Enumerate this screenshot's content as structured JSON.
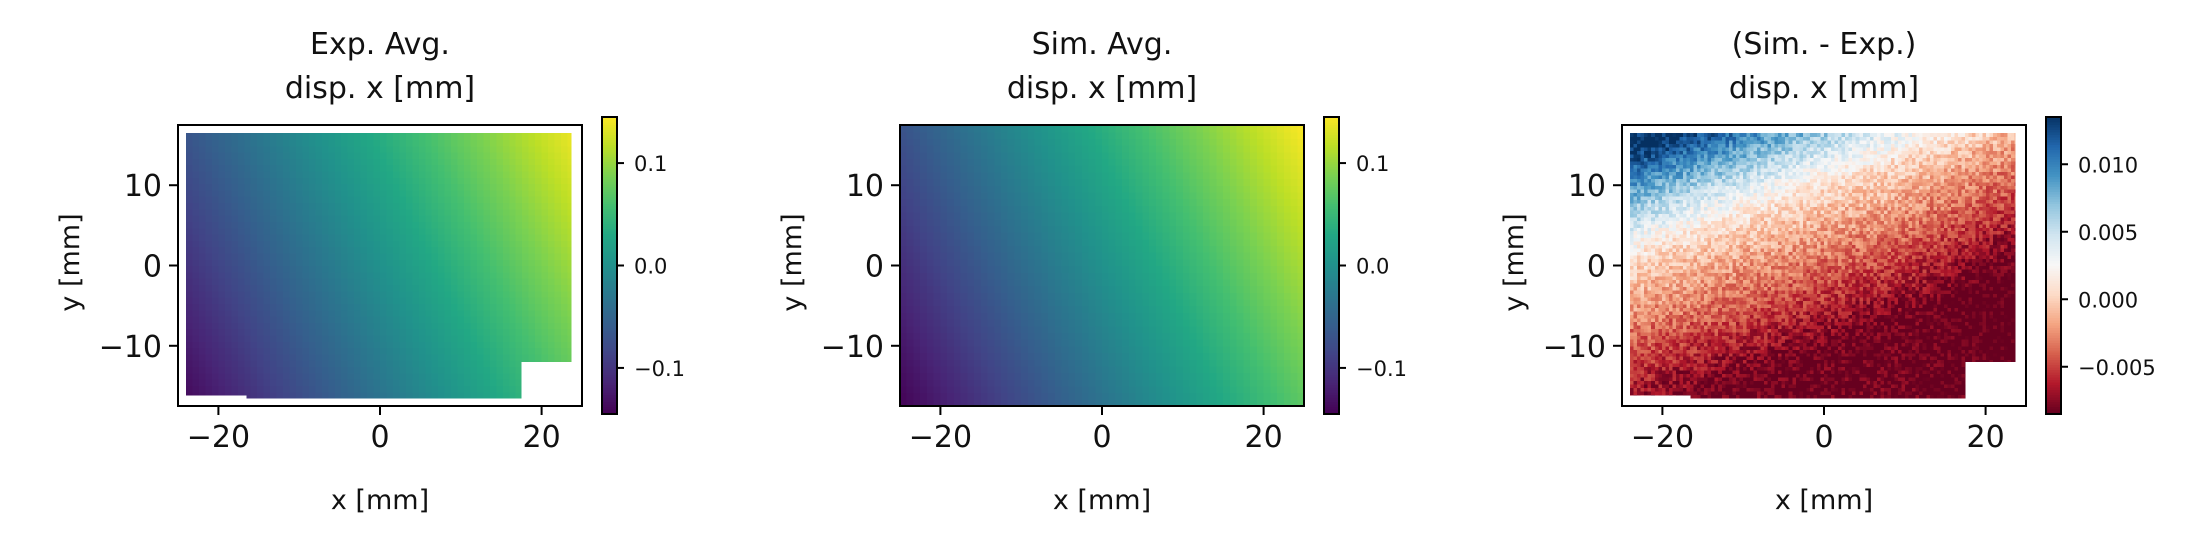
{
  "chart_data": [
    {
      "type": "heatmap",
      "title_lines": [
        "Exp. Avg.",
        "disp. x [mm]"
      ],
      "xlabel": "x [mm]",
      "ylabel": "y [mm]",
      "xlim": [
        -25,
        25
      ],
      "ylim": [
        -17.5,
        17.5
      ],
      "xticks": [
        -20,
        0,
        20
      ],
      "xtick_labels": [
        "−20",
        "0",
        "20"
      ],
      "yticks": [
        10,
        0,
        -10
      ],
      "ytick_labels": [
        "10",
        "0",
        "−10"
      ],
      "colormap": "viridis",
      "field": "linear_displacement",
      "value_range": [
        -0.145,
        0.145
      ],
      "data_extent": {
        "x": [
          -24,
          24
        ],
        "y": [
          -16.5,
          16.5
        ]
      },
      "colorbar": {
        "range": [
          -0.145,
          0.145
        ],
        "ticks": [
          0.1,
          0.0,
          -0.1
        ],
        "tick_labels": [
          "0.1",
          "0.0",
          "−0.1"
        ]
      }
    },
    {
      "type": "heatmap",
      "title_lines": [
        "Sim. Avg.",
        "disp. x [mm]"
      ],
      "xlabel": "x [mm]",
      "ylabel": "y [mm]",
      "xlim": [
        -25,
        25
      ],
      "ylim": [
        -17.5,
        17.5
      ],
      "xticks": [
        -20,
        0,
        20
      ],
      "xtick_labels": [
        "−20",
        "0",
        "20"
      ],
      "yticks": [
        10,
        0,
        -10
      ],
      "ytick_labels": [
        "10",
        "0",
        "−10"
      ],
      "colormap": "viridis",
      "field": "linear_displacement",
      "value_range": [
        -0.145,
        0.145
      ],
      "data_extent": {
        "x": [
          -25,
          25
        ],
        "y": [
          -17.5,
          17.5
        ]
      },
      "colorbar": {
        "range": [
          -0.145,
          0.145
        ],
        "ticks": [
          0.1,
          0.0,
          -0.1
        ],
        "tick_labels": [
          "0.1",
          "0.0",
          "−0.1"
        ]
      }
    },
    {
      "type": "heatmap",
      "title_lines": [
        "(Sim. - Exp.)",
        "disp. x [mm]"
      ],
      "xlabel": "x [mm]",
      "ylabel": "y [mm]",
      "xlim": [
        -25,
        25
      ],
      "ylim": [
        -17.5,
        17.5
      ],
      "xticks": [
        -20,
        0,
        20
      ],
      "xtick_labels": [
        "−20",
        "0",
        "20"
      ],
      "yticks": [
        10,
        0,
        -10
      ],
      "ytick_labels": [
        "10",
        "0",
        "−10"
      ],
      "colormap": "RdBu",
      "field": "noisy_difference",
      "value_range": [
        -0.0085,
        0.0135
      ],
      "data_extent": {
        "x": [
          -24,
          24
        ],
        "y": [
          -16.5,
          16.5
        ]
      },
      "colorbar": {
        "range": [
          -0.0085,
          0.0135
        ],
        "ticks": [
          0.01,
          0.005,
          0.0,
          -0.005
        ],
        "tick_labels": [
          "0.010",
          "0.005",
          "0.000",
          "−0.005"
        ]
      }
    }
  ]
}
